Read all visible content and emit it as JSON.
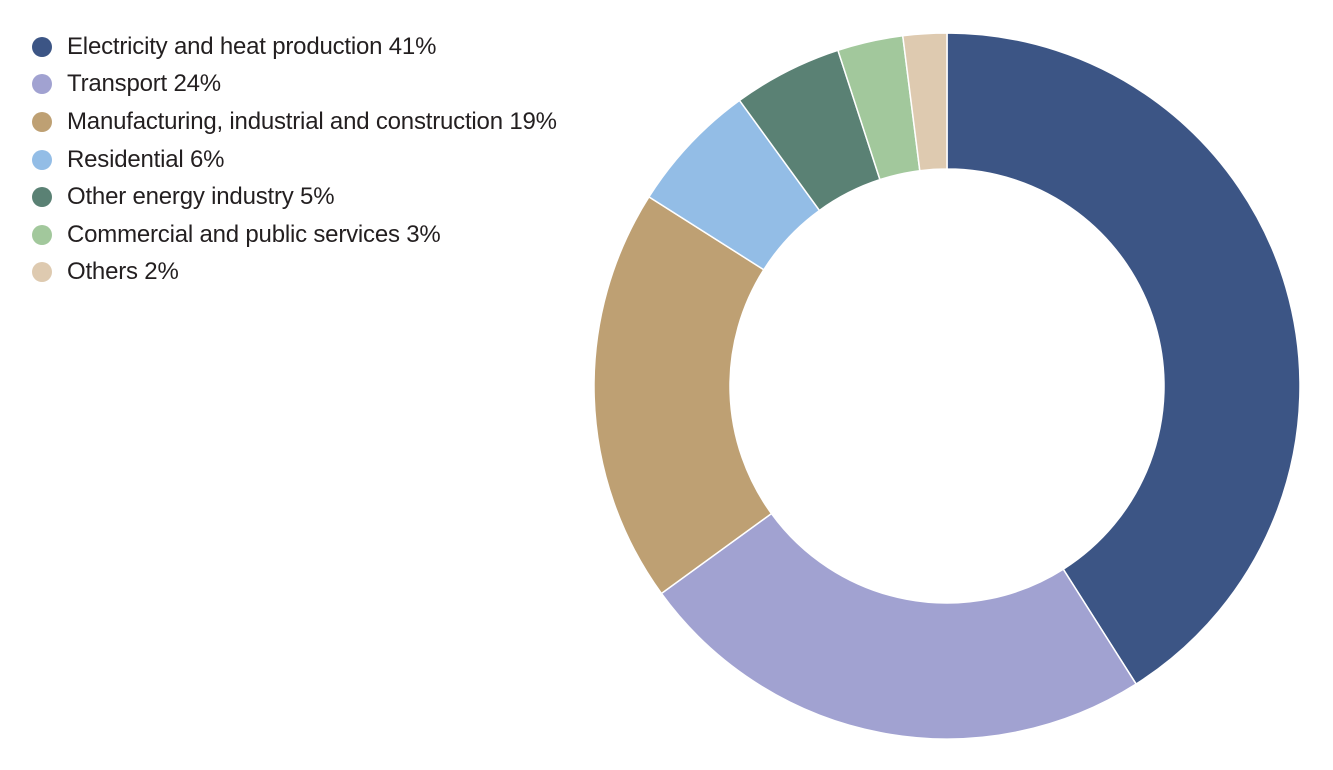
{
  "chart_data": {
    "type": "pie",
    "donut": true,
    "legend_position": "top-left",
    "categories": [
      "Electricity and heat production",
      "Transport",
      "Manufacturing, industrial and construction",
      "Residential",
      "Other energy industry",
      "Commercial and public services",
      "Others"
    ],
    "values": [
      41,
      24,
      19,
      6,
      5,
      3,
      2
    ],
    "legend_labels": [
      "Electricity and heat production 41%",
      "Transport 24%",
      "Manufacturing, industrial and construction 19%",
      "Residential 6%",
      "Other energy industry 5%",
      "Commercial and public services 3%",
      "Others 2%"
    ],
    "colors": [
      "#3c5585",
      "#a1a2d1",
      "#bea073",
      "#93bde6",
      "#5a8174",
      "#a2c89c",
      "#decab0"
    ]
  }
}
